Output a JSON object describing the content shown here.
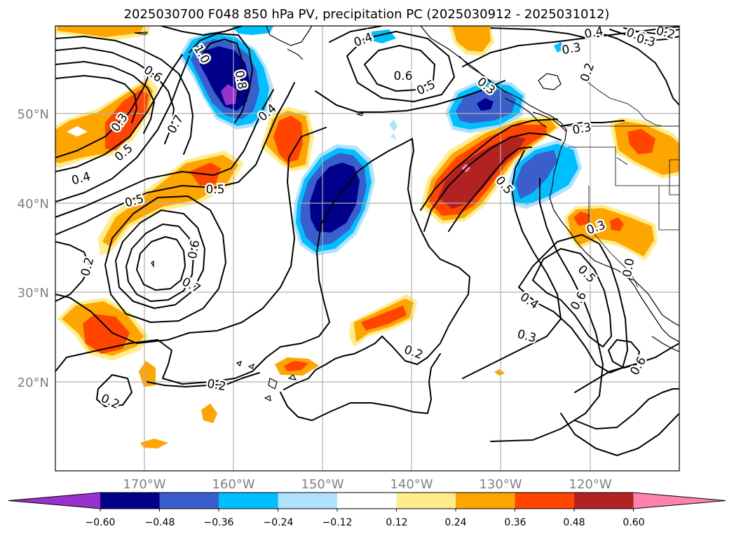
{
  "title": "2025030700 F048 850 hPa PV, precipitation PC (2025030912 - 2025031012)",
  "map": {
    "lon_range": [
      -180,
      -110
    ],
    "lat_range": [
      10,
      60
    ],
    "lat_labels": [
      "50°N",
      "40°N",
      "30°N",
      "20°N"
    ],
    "lon_labels": [
      "170°W",
      "160°W",
      "150°W",
      "140°W",
      "130°W",
      "120°W"
    ],
    "contour_labels": [
      "0.4",
      "0.6",
      "0.5",
      "0.3",
      "0.2",
      "0.4",
      "0.6",
      "0.3",
      "0.2",
      "0.6",
      "0.7",
      "0.3",
      "0.5",
      "0.4",
      "0.8",
      "1.0",
      "0.4",
      "0.3",
      "0.5",
      "0.5",
      "0.6",
      "0.2",
      "0.7",
      "0.5",
      "0.3",
      "0.2",
      "0.4",
      "0.3",
      "0.5",
      "0.6",
      "0.0",
      "0.3",
      "0.6",
      "0.2",
      "0.2"
    ]
  },
  "colorbar": {
    "ticks": [
      "−0.60",
      "−0.48",
      "−0.36",
      "−0.24",
      "−0.12",
      "0.12",
      "0.24",
      "0.36",
      "0.48",
      "0.60"
    ],
    "colors": [
      "#9932cc",
      "#00008b",
      "#3a5fcd",
      "#00bfff",
      "#b0e2ff",
      "#ffffff",
      "#ffec8b",
      "#ffa500",
      "#ff4500",
      "#b22222",
      "#ff82ab"
    ]
  },
  "colors": {
    "yellow": "#ffec8b",
    "orange": "#ffa500",
    "red_orange": "#ff4500",
    "dark_red": "#b22222",
    "pink": "#ff82ab",
    "light_blue": "#b0e2ff",
    "deep_sky": "#00bfff",
    "royal_blue": "#3a5fcd",
    "navy": "#00008b",
    "purple": "#9932cc"
  }
}
